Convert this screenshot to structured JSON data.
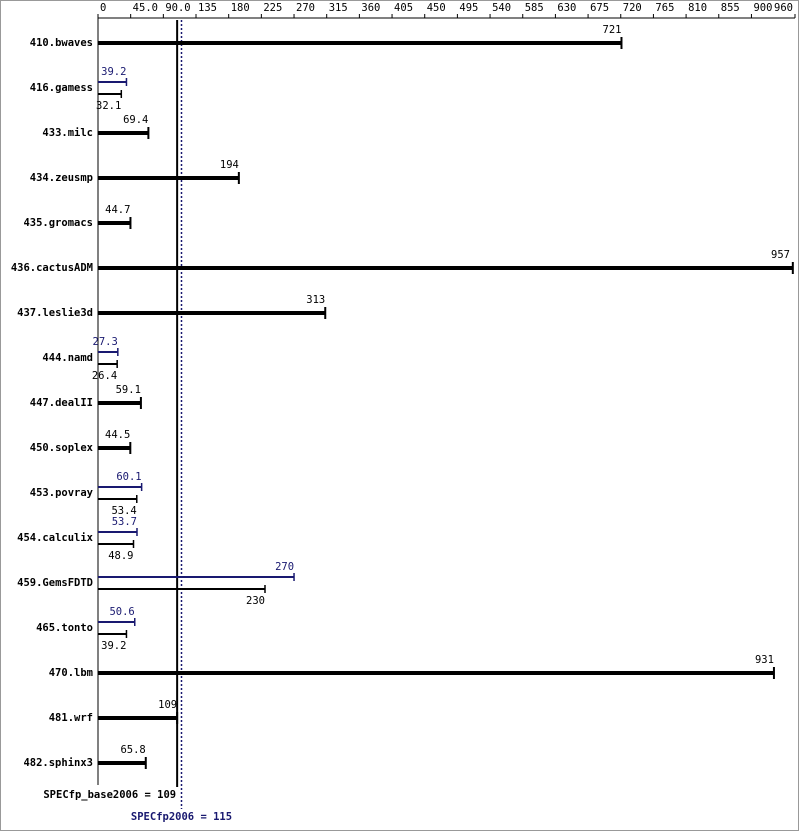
{
  "chart_data": {
    "type": "bar",
    "orientation": "horizontal",
    "categories": [
      "410.bwaves",
      "416.gamess",
      "433.milc",
      "434.zeusmp",
      "435.gromacs",
      "436.cactusADM",
      "437.leslie3d",
      "444.namd",
      "447.dealII",
      "450.soplex",
      "453.povray",
      "454.calculix",
      "459.GemsFDTD",
      "465.tonto",
      "470.lbm",
      "481.wrf",
      "482.sphinx3"
    ],
    "series": [
      {
        "color": "#000000",
        "values": [
          721,
          32.1,
          69.4,
          194,
          44.7,
          957,
          313,
          26.4,
          59.1,
          44.5,
          53.4,
          48.9,
          230,
          39.2,
          931,
          109,
          65.8
        ]
      },
      {
        "color": "#191970",
        "values": [
          null,
          39.2,
          null,
          null,
          null,
          null,
          null,
          27.3,
          null,
          null,
          60.1,
          53.7,
          270,
          50.6,
          null,
          null,
          null
        ]
      }
    ],
    "xlim": [
      0,
      960
    ],
    "xticks": [
      0,
      {
        "value": 45,
        "label": "45.0"
      },
      {
        "value": 90,
        "label": "90.0"
      },
      135,
      180,
      225,
      270,
      315,
      360,
      405,
      450,
      495,
      540,
      585,
      630,
      675,
      720,
      765,
      810,
      855,
      900,
      960
    ],
    "reference_lines": [
      {
        "label": "SPECfp_base2006 = 109",
        "value": 109,
        "color": "#000000",
        "style": "solid"
      },
      {
        "label": "SPECfp2006 = 115",
        "value": 115,
        "color": "#191970",
        "style": "dotted"
      }
    ]
  }
}
